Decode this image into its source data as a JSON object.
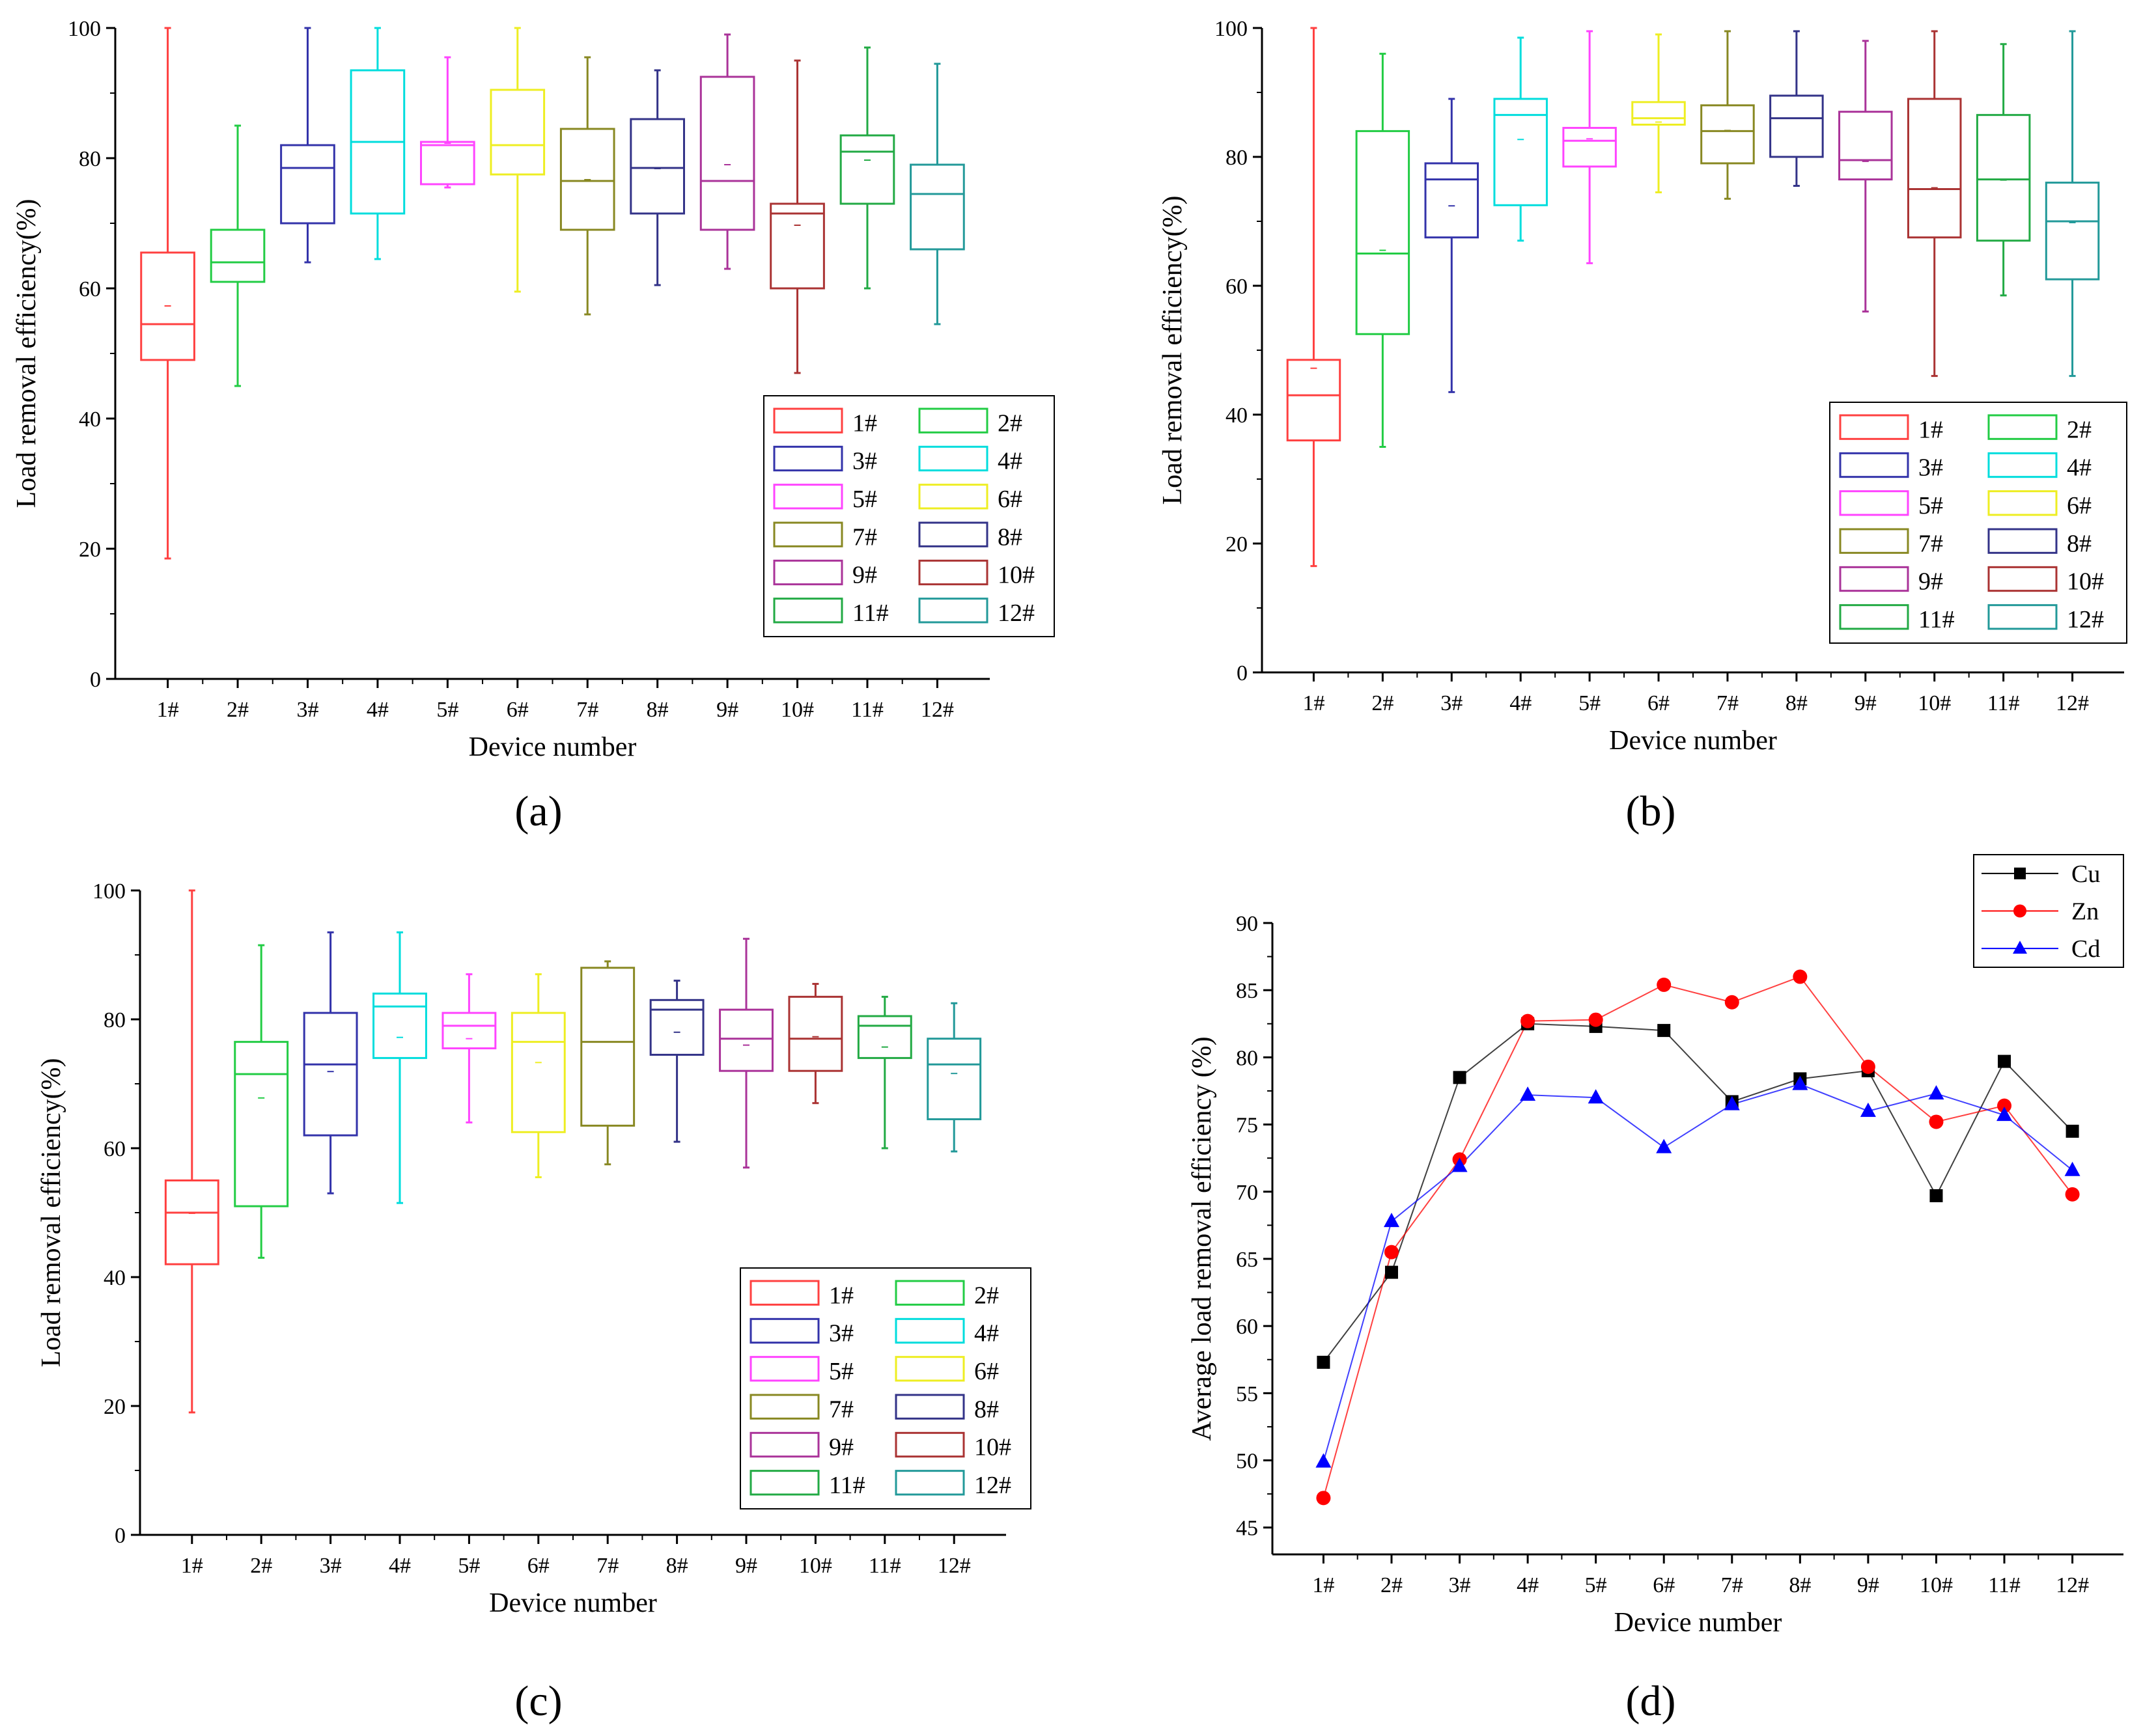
{
  "panels": {
    "a": {
      "label": "(a)"
    },
    "b": {
      "label": "(b)"
    },
    "c": {
      "label": "(c)"
    },
    "d": {
      "label": "(d)"
    }
  },
  "chart_data": [
    {
      "id": "a",
      "type": "box",
      "xlabel": "Device number",
      "ylabel": "Load removal efficiency(%)",
      "ylim": [
        0,
        100
      ],
      "yticks": [
        0,
        20,
        40,
        60,
        80,
        100
      ],
      "categories": [
        "1#",
        "2#",
        "3#",
        "4#",
        "5#",
        "6#",
        "7#",
        "8#",
        "9#",
        "10#",
        "11#",
        "12#"
      ],
      "colors": [
        "#ff4040",
        "#22cc44",
        "#3333aa",
        "#00dddd",
        "#ff44ff",
        "#eeee22",
        "#888822",
        "#333388",
        "#aa3399",
        "#aa3333",
        "#22aa44",
        "#229999"
      ],
      "boxes": [
        {
          "min": 18.5,
          "q1": 49,
          "median": 54.5,
          "q3": 65.5,
          "max": 100,
          "mean": 57.3
        },
        {
          "min": 45,
          "q1": 61,
          "median": 64,
          "q3": 69,
          "max": 85,
          "mean": 64
        },
        {
          "min": 64,
          "q1": 70,
          "median": 78.5,
          "q3": 82,
          "max": 100,
          "mean": 78.5
        },
        {
          "min": 64.5,
          "q1": 71.5,
          "median": 82.5,
          "q3": 93.5,
          "max": 100,
          "mean": 82.5
        },
        {
          "min": 75.5,
          "q1": 76,
          "median": 82,
          "q3": 82.5,
          "max": 95.5,
          "mean": 82.3
        },
        {
          "min": 59.5,
          "q1": 77.5,
          "median": 82,
          "q3": 90.5,
          "max": 100,
          "mean": 82
        },
        {
          "min": 56,
          "q1": 69,
          "median": 76.5,
          "q3": 84.5,
          "max": 95.5,
          "mean": 76.7
        },
        {
          "min": 60.5,
          "q1": 71.5,
          "median": 78.5,
          "q3": 86,
          "max": 93.5,
          "mean": 78.4
        },
        {
          "min": 63,
          "q1": 69,
          "median": 76.5,
          "q3": 92.5,
          "max": 99,
          "mean": 79
        },
        {
          "min": 47,
          "q1": 60,
          "median": 71.5,
          "q3": 73,
          "max": 95,
          "mean": 69.7
        },
        {
          "min": 60,
          "q1": 73,
          "median": 81,
          "q3": 83.5,
          "max": 97,
          "mean": 79.7
        },
        {
          "min": 54.5,
          "q1": 66,
          "median": 74.5,
          "q3": 79,
          "max": 94.5,
          "mean": 74.5
        }
      ],
      "legend": [
        "1#",
        "2#",
        "3#",
        "4#",
        "5#",
        "6#",
        "7#",
        "8#",
        "9#",
        "10#",
        "11#",
        "12#"
      ],
      "legend_placement": "bottom-right"
    },
    {
      "id": "b",
      "type": "box",
      "xlabel": "Device number",
      "ylabel": "Load removal efficiency(%)",
      "ylim": [
        0,
        100
      ],
      "yticks": [
        0,
        20,
        40,
        60,
        80,
        100
      ],
      "categories": [
        "1#",
        "2#",
        "3#",
        "4#",
        "5#",
        "6#",
        "7#",
        "8#",
        "9#",
        "10#",
        "11#",
        "12#"
      ],
      "colors": [
        "#ff4040",
        "#22cc44",
        "#3333aa",
        "#00dddd",
        "#ff44ff",
        "#eeee22",
        "#888822",
        "#333388",
        "#aa3399",
        "#aa3333",
        "#22aa44",
        "#229999"
      ],
      "boxes": [
        {
          "min": 16.5,
          "q1": 36,
          "median": 43,
          "q3": 48.5,
          "max": 100,
          "mean": 47.2
        },
        {
          "min": 35,
          "q1": 52.5,
          "median": 65,
          "q3": 84,
          "max": 96,
          "mean": 65.5
        },
        {
          "min": 43.5,
          "q1": 67.5,
          "median": 76.5,
          "q3": 79,
          "max": 89,
          "mean": 72.4
        },
        {
          "min": 67,
          "q1": 72.5,
          "median": 86.5,
          "q3": 89,
          "max": 98.5,
          "mean": 82.7
        },
        {
          "min": 63.5,
          "q1": 78.5,
          "median": 82.5,
          "q3": 84.5,
          "max": 99.5,
          "mean": 82.8
        },
        {
          "min": 74.5,
          "q1": 85,
          "median": 86,
          "q3": 88.5,
          "max": 99,
          "mean": 85.4
        },
        {
          "min": 73.5,
          "q1": 79,
          "median": 84,
          "q3": 88,
          "max": 99.5,
          "mean": 84.1
        },
        {
          "min": 75.5,
          "q1": 80,
          "median": 86,
          "q3": 89.5,
          "max": 99.5,
          "mean": 86
        },
        {
          "min": 56,
          "q1": 76.5,
          "median": 79.5,
          "q3": 87,
          "max": 98,
          "mean": 79.3
        },
        {
          "min": 46,
          "q1": 67.5,
          "median": 75,
          "q3": 89,
          "max": 99.5,
          "mean": 75.2
        },
        {
          "min": 58.5,
          "q1": 67,
          "median": 76.5,
          "q3": 86.5,
          "max": 97.5,
          "mean": 76.4
        },
        {
          "min": 46,
          "q1": 61,
          "median": 70,
          "q3": 76,
          "max": 99.5,
          "mean": 69.8
        }
      ],
      "legend": [
        "1#",
        "2#",
        "3#",
        "4#",
        "5#",
        "6#",
        "7#",
        "8#",
        "9#",
        "10#",
        "11#",
        "12#"
      ],
      "legend_placement": "bottom-right"
    },
    {
      "id": "c",
      "type": "box",
      "xlabel": "Device number",
      "ylabel": "Load removal efficiency(%)",
      "ylim": [
        0,
        100
      ],
      "yticks": [
        0,
        20,
        40,
        60,
        80,
        100
      ],
      "categories": [
        "1#",
        "2#",
        "3#",
        "4#",
        "5#",
        "6#",
        "7#",
        "8#",
        "9#",
        "10#",
        "11#",
        "12#"
      ],
      "colors": [
        "#ff4040",
        "#22cc44",
        "#3333aa",
        "#00dddd",
        "#ff44ff",
        "#eeee22",
        "#888822",
        "#333388",
        "#aa3399",
        "#aa3333",
        "#22aa44",
        "#229999"
      ],
      "boxes": [
        {
          "min": 19,
          "q1": 42,
          "median": 50,
          "q3": 55,
          "max": 100,
          "mean": 49.9
        },
        {
          "min": 43,
          "q1": 51,
          "median": 71.5,
          "q3": 76.5,
          "max": 91.5,
          "mean": 67.8
        },
        {
          "min": 53,
          "q1": 62,
          "median": 73,
          "q3": 81,
          "max": 93.5,
          "mean": 71.9
        },
        {
          "min": 51.5,
          "q1": 74,
          "median": 82,
          "q3": 84,
          "max": 93.5,
          "mean": 77.2
        },
        {
          "min": 64,
          "q1": 75.5,
          "median": 79,
          "q3": 81,
          "max": 87,
          "mean": 77
        },
        {
          "min": 55.5,
          "q1": 62.5,
          "median": 76.5,
          "q3": 81,
          "max": 87,
          "mean": 73.3
        },
        {
          "min": 57.5,
          "q1": 63.5,
          "median": 76.5,
          "q3": 88,
          "max": 89,
          "mean": 76.5
        },
        {
          "min": 61,
          "q1": 74.5,
          "median": 81.5,
          "q3": 83,
          "max": 86,
          "mean": 78
        },
        {
          "min": 57,
          "q1": 72,
          "median": 77,
          "q3": 81.5,
          "max": 92.5,
          "mean": 76
        },
        {
          "min": 67,
          "q1": 72,
          "median": 77,
          "q3": 83.5,
          "max": 85.5,
          "mean": 77.3
        },
        {
          "min": 60,
          "q1": 74,
          "median": 79,
          "q3": 80.5,
          "max": 83.5,
          "mean": 75.7
        },
        {
          "min": 59.5,
          "q1": 64.5,
          "median": 73,
          "q3": 77,
          "max": 82.5,
          "mean": 71.6
        }
      ],
      "legend": [
        "1#",
        "2#",
        "3#",
        "4#",
        "5#",
        "6#",
        "7#",
        "8#",
        "9#",
        "10#",
        "11#",
        "12#"
      ],
      "legend_placement": "bottom-right"
    },
    {
      "id": "d",
      "type": "line",
      "xlabel": "Device number",
      "ylabel": "Average load removal efficiency (%)",
      "ylim": [
        43,
        90
      ],
      "yticks": [
        45,
        50,
        55,
        60,
        65,
        70,
        75,
        80,
        85,
        90
      ],
      "categories": [
        "1#",
        "2#",
        "3#",
        "4#",
        "5#",
        "6#",
        "7#",
        "8#",
        "9#",
        "10#",
        "11#",
        "12#"
      ],
      "series": [
        {
          "name": "Cu",
          "color": "#000000",
          "marker": "square",
          "values": [
            57.3,
            64,
            78.5,
            82.5,
            82.3,
            82,
            76.7,
            78.4,
            79,
            69.7,
            79.7,
            74.5
          ]
        },
        {
          "name": "Zn",
          "color": "#ff0000",
          "marker": "circle",
          "values": [
            47.2,
            65.5,
            72.4,
            82.7,
            82.8,
            85.4,
            84.1,
            86,
            79.3,
            75.2,
            76.4,
            69.8
          ]
        },
        {
          "name": "Cd",
          "color": "#0000ff",
          "marker": "triangle",
          "values": [
            49.9,
            67.8,
            71.9,
            77.2,
            77,
            73.3,
            76.5,
            78,
            76,
            77.3,
            75.7,
            71.6
          ]
        }
      ],
      "legend_placement": "top-right"
    }
  ]
}
